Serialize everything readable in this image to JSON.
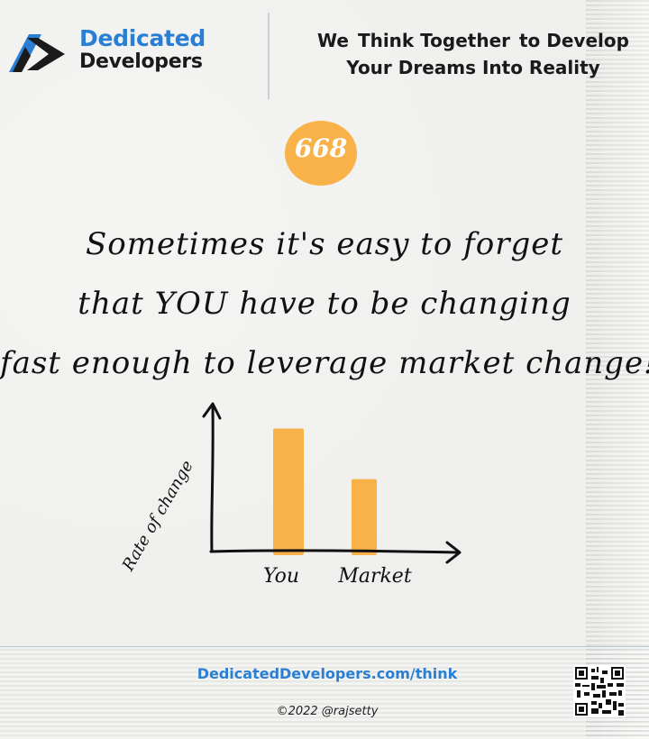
{
  "brand": {
    "name_line1": "Dedicated",
    "name_line2": "Developers"
  },
  "tagline": {
    "prefix": "We",
    "highlight": "Think Together",
    "suffix": "to Develop",
    "line2": "Your Dreams Into Reality"
  },
  "badge": {
    "number": "668"
  },
  "quote": {
    "line1": "Sometimes it's easy to forget",
    "line2": "that YOU have to be changing",
    "line3": "fast enough to leverage market change!"
  },
  "chart_data": {
    "type": "bar",
    "categories": [
      "You",
      "Market"
    ],
    "values": [
      0.95,
      0.56
    ],
    "ylabel": "Rate of change",
    "xlabel": "",
    "ylim": [
      0,
      1.1
    ],
    "bar_color": "#f9b24a"
  },
  "footer": {
    "link": "DedicatedDevelopers.com/think",
    "copyright": "©2022 @rajsetty"
  },
  "colors": {
    "brand_blue": "#2a7fd4",
    "accent_orange": "#f9b24a",
    "ink": "#111111"
  }
}
